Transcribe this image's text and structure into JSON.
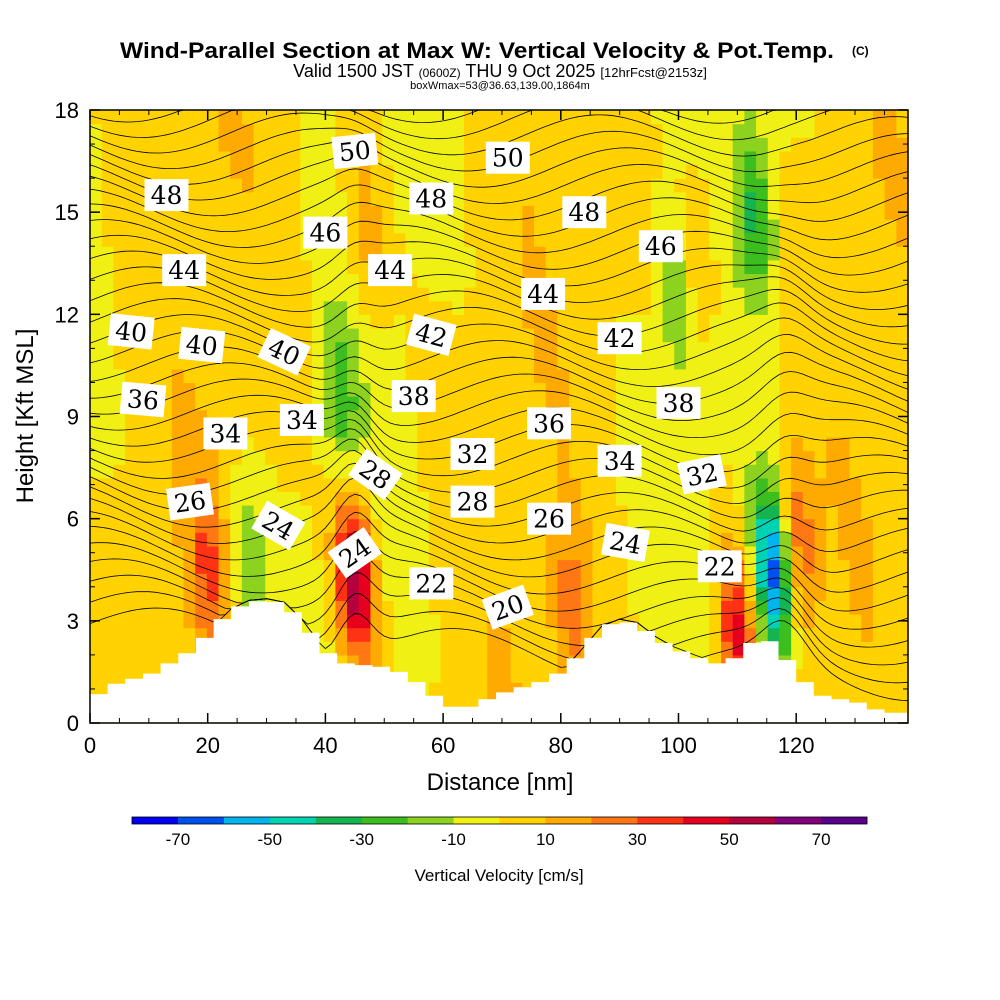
{
  "chart_data": {
    "type": "heatmap",
    "title": "Wind-Parallel Section at Max W: Vertical Velocity & Pot.Temp.",
    "title_mark": "(C)",
    "subtitle_main": "Valid 1500 JST",
    "subtitle_utc": "(0600Z)",
    "subtitle_date": "THU 9 Oct 2025",
    "subtitle_fcst": "[12hrFcst@2153z]",
    "subtitle_box": "boxWmax=53@36.63,139.00,1864m",
    "xlabel": "Distance [nm]",
    "ylabel": "Height [Kft MSL]",
    "xlim": [
      0,
      139
    ],
    "ylim": [
      0,
      18
    ],
    "x_ticks": [
      0,
      20,
      40,
      60,
      80,
      100,
      120
    ],
    "y_ticks": [
      0,
      3,
      6,
      9,
      12,
      15,
      18
    ],
    "colorbar": {
      "label": "Vertical Velocity [cm/s]",
      "bounds": [
        -80,
        80
      ],
      "step": 10,
      "tick_values": [
        -70,
        -50,
        -30,
        -10,
        10,
        30,
        50,
        70
      ],
      "colors": [
        "#0000f0",
        "#0050f0",
        "#00b4f0",
        "#00d2b4",
        "#14b450",
        "#3cbe1e",
        "#8cd21e",
        "#f0f014",
        "#ffd200",
        "#ffaa00",
        "#ff7814",
        "#ff3214",
        "#e6001e",
        "#b4003c",
        "#82007d",
        "#5a008c"
      ]
    },
    "velocity_features": [
      {
        "x": 45,
        "z": 4.3,
        "w": 62
      },
      {
        "x": 116,
        "z": 4.4,
        "w": -68
      },
      {
        "x": 120,
        "z": 5.4,
        "w": 28
      },
      {
        "x": 42.5,
        "z": 9.5,
        "w": -24
      },
      {
        "x": 27,
        "z": 4.6,
        "w": -22
      },
      {
        "x": 20,
        "z": 4.6,
        "w": 24
      },
      {
        "x": 47,
        "z": 14.5,
        "w": 18
      },
      {
        "x": 82,
        "z": 3.2,
        "w": 24
      },
      {
        "x": 110,
        "z": 2.6,
        "w": 42
      },
      {
        "x": 113,
        "z": 15,
        "w": -32
      },
      {
        "x": 100,
        "z": 12.5,
        "w": -22
      },
      {
        "x": 103,
        "z": 13.8,
        "w": 20
      }
    ],
    "theta_contours": {
      "min": 18,
      "max": 53,
      "interval": 1,
      "units": "C"
    },
    "terrain_profile": {
      "x": [
        0,
        3,
        6,
        9,
        12,
        15,
        18,
        21,
        24,
        27,
        30,
        33,
        36,
        39,
        42,
        45,
        48,
        51,
        54,
        57,
        60,
        63,
        66,
        69,
        72,
        75,
        78,
        81,
        84,
        87,
        90,
        93,
        96,
        99,
        102,
        105,
        108,
        111,
        114,
        117,
        120,
        123,
        126,
        129,
        132,
        135,
        139
      ],
      "z": [
        0.7,
        1.0,
        1.3,
        1.3,
        1.6,
        1.9,
        2.2,
        2.8,
        3.3,
        3.55,
        3.6,
        3.5,
        3.0,
        2.3,
        1.8,
        1.7,
        1.7,
        1.6,
        1.4,
        1.0,
        0.6,
        0.35,
        0.6,
        0.8,
        1.0,
        1.1,
        1.3,
        1.6,
        2.2,
        2.8,
        3.0,
        2.9,
        2.5,
        2.2,
        2.0,
        1.8,
        1.7,
        2.1,
        2.6,
        2.2,
        1.5,
        0.9,
        0.7,
        0.7,
        0.5,
        0.3,
        0.3
      ]
    },
    "contour_labels": [
      {
        "text": "50",
        "x": 45,
        "z": 16.8,
        "rot": -6
      },
      {
        "text": "50",
        "x": 71,
        "z": 16.6,
        "rot": 0
      },
      {
        "text": "48",
        "x": 13,
        "z": 15.5,
        "rot": 0
      },
      {
        "text": "48",
        "x": 58,
        "z": 15.4,
        "rot": 0
      },
      {
        "text": "48",
        "x": 84,
        "z": 15.0,
        "rot": 0
      },
      {
        "text": "46",
        "x": 40,
        "z": 14.4,
        "rot": 0
      },
      {
        "text": "46",
        "x": 97,
        "z": 14.0,
        "rot": 0
      },
      {
        "text": "44",
        "x": 16,
        "z": 13.3,
        "rot": 0
      },
      {
        "text": "44",
        "x": 51,
        "z": 13.3,
        "rot": 0
      },
      {
        "text": "44",
        "x": 77,
        "z": 12.6,
        "rot": 0
      },
      {
        "text": "42",
        "x": 58,
        "z": 11.4,
        "rot": 15
      },
      {
        "text": "42",
        "x": 90,
        "z": 11.3,
        "rot": 0
      },
      {
        "text": "40",
        "x": 7,
        "z": 11.5,
        "rot": 6
      },
      {
        "text": "40",
        "x": 19,
        "z": 11.1,
        "rot": 6
      },
      {
        "text": "40",
        "x": 33,
        "z": 10.9,
        "rot": 25
      },
      {
        "text": "38",
        "x": 55,
        "z": 9.6,
        "rot": 0
      },
      {
        "text": "38",
        "x": 100,
        "z": 9.4,
        "rot": 0
      },
      {
        "text": "36",
        "x": 9,
        "z": 9.5,
        "rot": 5
      },
      {
        "text": "36",
        "x": 78,
        "z": 8.8,
        "rot": 0
      },
      {
        "text": "34",
        "x": 23,
        "z": 8.5,
        "rot": 0
      },
      {
        "text": "34",
        "x": 36,
        "z": 8.9,
        "rot": 0
      },
      {
        "text": "34",
        "x": 90,
        "z": 7.7,
        "rot": 0
      },
      {
        "text": "32",
        "x": 65,
        "z": 7.9,
        "rot": 0
      },
      {
        "text": "32",
        "x": 104,
        "z": 7.3,
        "rot": -12
      },
      {
        "text": "28",
        "x": 48.5,
        "z": 7.3,
        "rot": 35
      },
      {
        "text": "28",
        "x": 65,
        "z": 6.5,
        "rot": 0
      },
      {
        "text": "26",
        "x": 17,
        "z": 6.5,
        "rot": -8
      },
      {
        "text": "26",
        "x": 78,
        "z": 6.0,
        "rot": 0
      },
      {
        "text": "24",
        "x": 32,
        "z": 5.8,
        "rot": 30
      },
      {
        "text": "24",
        "x": 45,
        "z": 5.0,
        "rot": -35
      },
      {
        "text": "24",
        "x": 91,
        "z": 5.3,
        "rot": 10
      },
      {
        "text": "22",
        "x": 58,
        "z": 4.1,
        "rot": 0
      },
      {
        "text": "22",
        "x": 107,
        "z": 4.6,
        "rot": 0
      },
      {
        "text": "20",
        "x": 71,
        "z": 3.4,
        "rot": -20
      }
    ]
  }
}
